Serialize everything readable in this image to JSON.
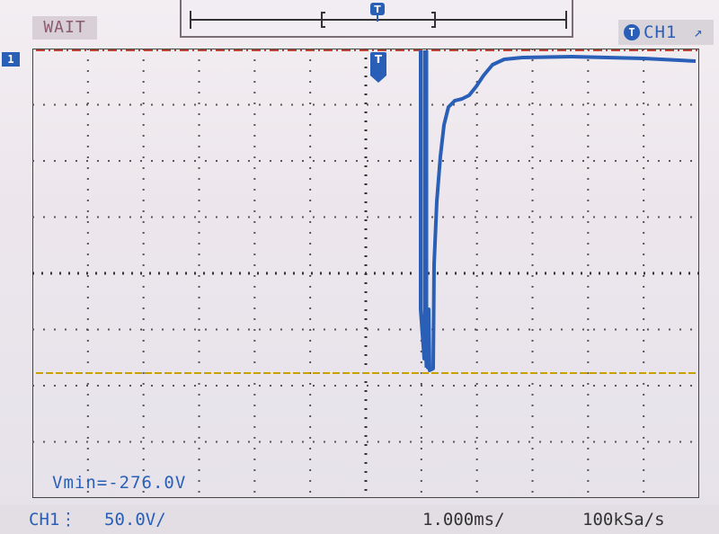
{
  "status": {
    "text": "WAIT"
  },
  "trigger_channel": {
    "label": "CH1"
  },
  "channel_marker": {
    "label": "1"
  },
  "measurement": {
    "text": "Vmin=-276.0V"
  },
  "bottom": {
    "channel": "CH1⋮",
    "volts_per_div": "50.0V/",
    "time_per_div": "1.000ms/",
    "sample_rate": "100kSa/s"
  },
  "colors": {
    "trace": "#2a5fb7",
    "grid": "#666666",
    "trigger_level": "#c8a000",
    "reference": "#c04030"
  },
  "icons": {
    "trigger_marker": "trigger-t-icon",
    "edge": "rising-edge-icon"
  }
}
